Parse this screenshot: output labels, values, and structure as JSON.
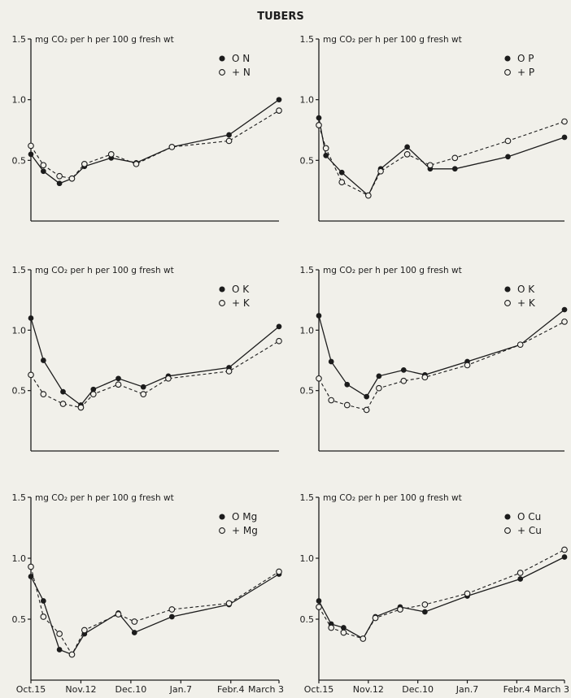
{
  "figure_title": "TUBERS",
  "chart_data": [
    {
      "type": "line",
      "ylabel": "mg CO₂ per h per 100 g fresh wt",
      "ytick_labels": [
        "1.5",
        "1.0",
        "0.5"
      ],
      "yticks": [
        1.5,
        1.0,
        0.5
      ],
      "ylim": [
        0,
        1.5
      ],
      "xlim": [
        0,
        139
      ],
      "x_tick_labels": [],
      "legend_position": "top-right",
      "series": [
        {
          "name": "O N",
          "marker": "filled",
          "line": "solid",
          "x": [
            0,
            7,
            16,
            23,
            30,
            45,
            59,
            79,
            111,
            139
          ],
          "y": [
            0.55,
            0.41,
            0.31,
            0.35,
            0.45,
            0.52,
            0.48,
            0.61,
            0.71,
            1.0
          ]
        },
        {
          "name": "+ N",
          "marker": "open",
          "line": "dashed",
          "x": [
            0,
            7,
            16,
            23,
            30,
            45,
            59,
            79,
            111,
            139
          ],
          "y": [
            0.62,
            0.46,
            0.37,
            0.35,
            0.47,
            0.55,
            0.47,
            0.61,
            0.66,
            0.91
          ]
        }
      ]
    },
    {
      "type": "line",
      "ylabel": "mg CO₂ per h per 100 g fresh wt",
      "ytick_labels": [
        "1.5",
        "1.0",
        "0.5"
      ],
      "yticks": [
        1.5,
        1.0,
        0.5
      ],
      "ylim": [
        0,
        1.5
      ],
      "xlim": [
        0,
        139
      ],
      "x_tick_labels": [],
      "legend_position": "top-right",
      "series": [
        {
          "name": "O P",
          "marker": "filled",
          "line": "solid",
          "x": [
            0,
            4,
            13,
            28,
            35,
            50,
            63,
            77,
            107,
            139
          ],
          "y": [
            0.85,
            0.54,
            0.4,
            0.21,
            0.43,
            0.61,
            0.43,
            0.43,
            0.53,
            0.69
          ]
        },
        {
          "name": "+ P",
          "marker": "open",
          "line": "dashed",
          "x": [
            0,
            4,
            13,
            28,
            35,
            50,
            63,
            77,
            107,
            139
          ],
          "y": [
            0.79,
            0.6,
            0.32,
            0.21,
            0.41,
            0.55,
            0.46,
            0.52,
            0.66,
            0.82
          ]
        }
      ]
    },
    {
      "type": "line",
      "ylabel": "mg CO₂ per h per 100 g fresh wt",
      "ytick_labels": [
        "1.5",
        "1.0",
        "0.5"
      ],
      "yticks": [
        1.5,
        1.0,
        0.5
      ],
      "ylim": [
        0,
        1.5
      ],
      "xlim": [
        0,
        139
      ],
      "x_tick_labels": [],
      "legend_position": "top-right",
      "series": [
        {
          "name": "O K",
          "marker": "filled",
          "line": "solid",
          "x": [
            0,
            7,
            18,
            28,
            35,
            49,
            63,
            77,
            111,
            139
          ],
          "y": [
            1.1,
            0.75,
            0.49,
            0.38,
            0.51,
            0.6,
            0.53,
            0.62,
            0.69,
            1.03
          ]
        },
        {
          "name": "+ K",
          "marker": "open",
          "line": "dashed",
          "x": [
            0,
            7,
            18,
            28,
            35,
            49,
            63,
            77,
            111,
            139
          ],
          "y": [
            0.63,
            0.47,
            0.39,
            0.36,
            0.47,
            0.55,
            0.47,
            0.6,
            0.66,
            0.91
          ]
        }
      ]
    },
    {
      "type": "line",
      "ylabel": "mg CO₂ per h per 100 g fresh wt",
      "ytick_labels": [
        "1.5",
        "1.0",
        "0.5"
      ],
      "yticks": [
        1.5,
        1.0,
        0.5
      ],
      "ylim": [
        0,
        1.5
      ],
      "xlim": [
        0,
        139
      ],
      "x_tick_labels": [],
      "legend_position": "top-right",
      "series": [
        {
          "name": "O K",
          "marker": "filled",
          "line": "solid",
          "x": [
            0,
            7,
            16,
            27,
            34,
            48,
            60,
            84,
            114,
            139
          ],
          "y": [
            1.12,
            0.74,
            0.55,
            0.45,
            0.62,
            0.67,
            0.63,
            0.74,
            0.88,
            1.17
          ]
        },
        {
          "name": "+ K",
          "marker": "open",
          "line": "dashed",
          "x": [
            0,
            7,
            16,
            27,
            34,
            48,
            60,
            84,
            114,
            139
          ],
          "y": [
            0.6,
            0.42,
            0.38,
            0.34,
            0.52,
            0.58,
            0.61,
            0.71,
            0.88,
            1.07
          ]
        }
      ]
    },
    {
      "type": "line",
      "ylabel": "mg CO₂ per h per 100 g fresh wt",
      "ytick_labels": [
        "1.5",
        "1.0",
        "0.5"
      ],
      "yticks": [
        1.5,
        1.0,
        0.5
      ],
      "ylim": [
        0,
        1.5
      ],
      "xlim": [
        0,
        139
      ],
      "x_tick_labels": [
        "Oct.15",
        "Nov.12",
        "Dec.10",
        "Jan.7",
        "Febr.4",
        "March 3"
      ],
      "x_tick_positions": [
        0,
        28,
        56,
        84,
        112,
        139
      ],
      "legend_position": "top-right",
      "series": [
        {
          "name": "O Mg",
          "marker": "filled",
          "line": "solid",
          "x": [
            0,
            7,
            16,
            23,
            30,
            49,
            58,
            79,
            111,
            139
          ],
          "y": [
            0.85,
            0.65,
            0.25,
            0.21,
            0.38,
            0.55,
            0.39,
            0.52,
            0.62,
            0.87
          ]
        },
        {
          "name": "+ Mg",
          "marker": "open",
          "line": "dashed",
          "x": [
            0,
            7,
            16,
            23,
            30,
            49,
            58,
            79,
            111,
            139
          ],
          "y": [
            0.93,
            0.52,
            0.38,
            0.21,
            0.41,
            0.54,
            0.48,
            0.58,
            0.63,
            0.89
          ]
        }
      ]
    },
    {
      "type": "line",
      "ylabel": "mg CO₂ per h per 100 g fresh wt",
      "ytick_labels": [
        "1.5",
        "1.0",
        "0.5"
      ],
      "yticks": [
        1.5,
        1.0,
        0.5
      ],
      "ylim": [
        0,
        1.5
      ],
      "xlim": [
        0,
        139
      ],
      "x_tick_labels": [
        "Oct.15",
        "Nov.12",
        "Dec.10",
        "Jan.7",
        "Febr.4",
        "March 3"
      ],
      "x_tick_positions": [
        0,
        28,
        56,
        84,
        112,
        139
      ],
      "legend_position": "top-right",
      "series": [
        {
          "name": "O Cu",
          "marker": "filled",
          "line": "solid",
          "x": [
            0,
            7,
            14,
            25,
            32,
            46,
            60,
            84,
            114,
            139
          ],
          "y": [
            0.65,
            0.46,
            0.43,
            0.34,
            0.52,
            0.6,
            0.56,
            0.69,
            0.83,
            1.01
          ]
        },
        {
          "name": "+ Cu",
          "marker": "open",
          "line": "dashed",
          "x": [
            0,
            7,
            14,
            25,
            32,
            46,
            60,
            84,
            114,
            139
          ],
          "y": [
            0.6,
            0.43,
            0.39,
            0.34,
            0.51,
            0.58,
            0.62,
            0.71,
            0.88,
            1.07
          ]
        }
      ]
    }
  ]
}
